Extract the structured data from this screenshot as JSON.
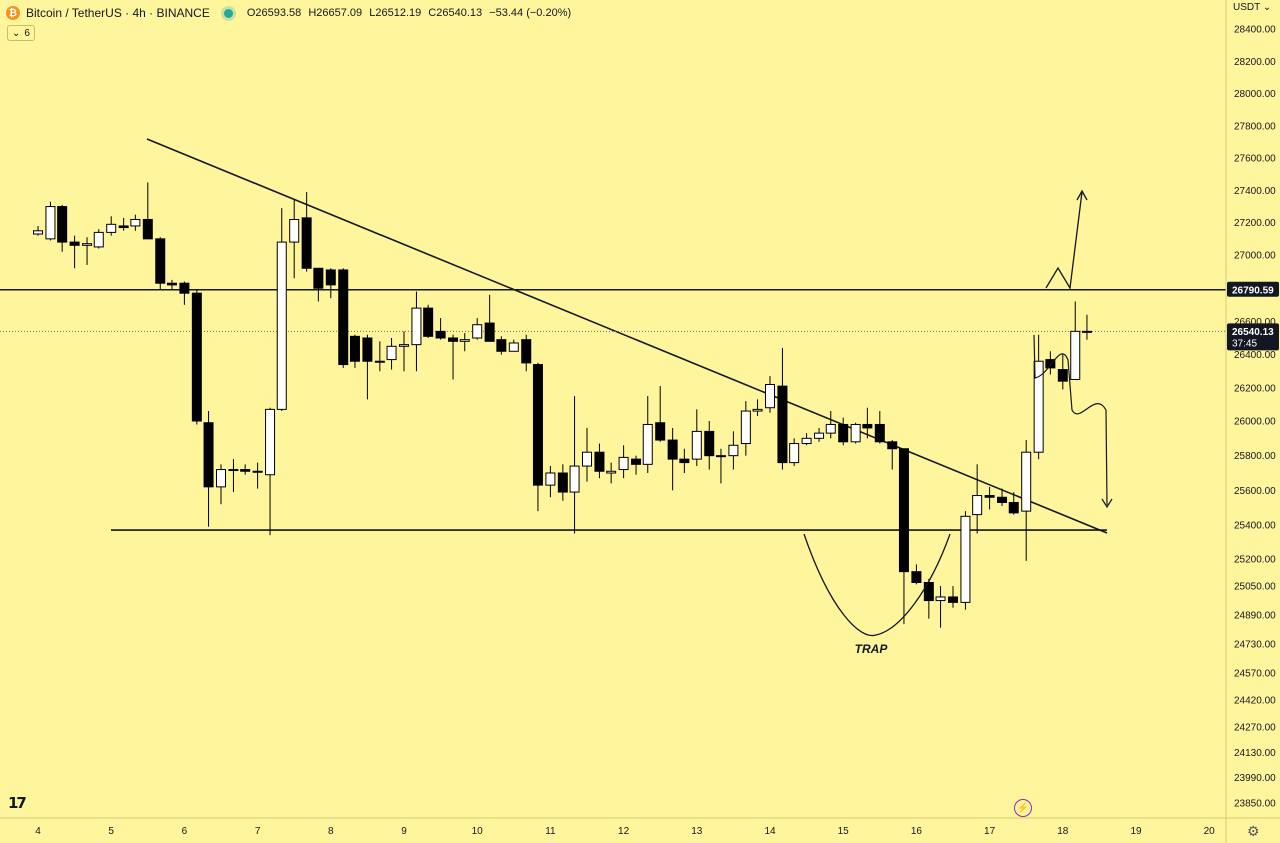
{
  "header": {
    "symbol": "Bitcoin / TetherUS · 4h · BINANCE",
    "open": "O26593.58",
    "high": "H26657.09",
    "low": "L26512.19",
    "close": "C26540.13",
    "change": "−53.44 (−0.20%)",
    "indicator_count": "6",
    "currency": "USDT"
  },
  "icons": {
    "coin": "bitcoin-coin-icon",
    "live": "market-open-dot-icon",
    "settings": "gear-icon",
    "alert": "lightning-icon",
    "logo": "tradingview-logo-icon"
  },
  "labels": {
    "trap": "TRAP",
    "logo_text": "17",
    "bolt": "⚡",
    "gear": "⚙"
  },
  "colors": {
    "background": "#fff59d",
    "bull_candle": "#ffffff",
    "bear_candle": "#000000",
    "price_tag": "#131722"
  },
  "chart_data": {
    "type": "candlestick",
    "title": "Bitcoin / TetherUS · 4h · BINANCE",
    "x_ticks": [
      "4",
      "5",
      "6",
      "7",
      "8",
      "9",
      "10",
      "11",
      "12",
      "13",
      "14",
      "15",
      "16",
      "17",
      "18",
      "19",
      "20"
    ],
    "y_ticks": [
      "28400.00",
      "28200.00",
      "28000.00",
      "27800.00",
      "27600.00",
      "27400.00",
      "27200.00",
      "27000.00",
      "26800.00",
      "26600.00",
      "26400.00",
      "26200.00",
      "26000.00",
      "25800.00",
      "25600.00",
      "25400.00",
      "25200.00",
      "25050.00",
      "24890.00",
      "24730.00",
      "24570.00",
      "24420.00",
      "24270.00",
      "24130.00",
      "23990.00",
      "23850.00"
    ],
    "candles": [
      {
        "t": "4.0",
        "o": 27130,
        "h": 27180,
        "l": 27120,
        "c": 27150
      },
      {
        "t": "4.17",
        "o": 27100,
        "h": 27330,
        "l": 27090,
        "c": 27300
      },
      {
        "t": "4.33",
        "o": 27300,
        "h": 27310,
        "l": 27020,
        "c": 27080
      },
      {
        "t": "4.5",
        "o": 27080,
        "h": 27120,
        "l": 26920,
        "c": 27060
      },
      {
        "t": "4.67",
        "o": 27060,
        "h": 27110,
        "l": 26940,
        "c": 27070
      },
      {
        "t": "4.83",
        "o": 27050,
        "h": 27160,
        "l": 27040,
        "c": 27140
      },
      {
        "t": "5.0",
        "o": 27140,
        "h": 27240,
        "l": 27120,
        "c": 27190
      },
      {
        "t": "5.17",
        "o": 27180,
        "h": 27230,
        "l": 27150,
        "c": 27170
      },
      {
        "t": "5.33",
        "o": 27180,
        "h": 27250,
        "l": 27150,
        "c": 27220
      },
      {
        "t": "5.5",
        "o": 27220,
        "h": 27450,
        "l": 27100,
        "c": 27100
      },
      {
        "t": "5.67",
        "o": 27100,
        "h": 27110,
        "l": 26790,
        "c": 26830
      },
      {
        "t": "5.83",
        "o": 26830,
        "h": 26850,
        "l": 26790,
        "c": 26820
      },
      {
        "t": "6.0",
        "o": 26830,
        "h": 26840,
        "l": 26700,
        "c": 26770
      },
      {
        "t": "6.17",
        "o": 26770,
        "h": 26790,
        "l": 25980,
        "c": 26000
      },
      {
        "t": "6.33",
        "o": 25990,
        "h": 26060,
        "l": 25390,
        "c": 25620
      },
      {
        "t": "6.5",
        "o": 25620,
        "h": 25750,
        "l": 25520,
        "c": 25720
      },
      {
        "t": "6.67",
        "o": 25720,
        "h": 25780,
        "l": 25590,
        "c": 25720
      },
      {
        "t": "6.83",
        "o": 25720,
        "h": 25750,
        "l": 25690,
        "c": 25710
      },
      {
        "t": "7.0",
        "o": 25710,
        "h": 25760,
        "l": 25610,
        "c": 25710
      },
      {
        "t": "7.17",
        "o": 25690,
        "h": 26080,
        "l": 25340,
        "c": 26070
      },
      {
        "t": "7.33",
        "o": 26070,
        "h": 27290,
        "l": 26060,
        "c": 27080
      },
      {
        "t": "7.5",
        "o": 27080,
        "h": 27340,
        "l": 26860,
        "c": 27220
      },
      {
        "t": "7.67",
        "o": 27230,
        "h": 27390,
        "l": 26900,
        "c": 26920
      },
      {
        "t": "7.83",
        "o": 26920,
        "h": 26920,
        "l": 26720,
        "c": 26800
      },
      {
        "t": "8.0",
        "o": 26910,
        "h": 26920,
        "l": 26740,
        "c": 26820
      },
      {
        "t": "8.17",
        "o": 26910,
        "h": 26920,
        "l": 26320,
        "c": 26340
      },
      {
        "t": "8.33",
        "o": 26510,
        "h": 26520,
        "l": 26320,
        "c": 26360
      },
      {
        "t": "8.5",
        "o": 26500,
        "h": 26520,
        "l": 26130,
        "c": 26360
      },
      {
        "t": "8.67",
        "o": 26360,
        "h": 26480,
        "l": 26300,
        "c": 26360
      },
      {
        "t": "8.83",
        "o": 26370,
        "h": 26500,
        "l": 26310,
        "c": 26450
      },
      {
        "t": "9.0",
        "o": 26450,
        "h": 26540,
        "l": 26300,
        "c": 26460
      },
      {
        "t": "9.17",
        "o": 26460,
        "h": 26780,
        "l": 26300,
        "c": 26680
      },
      {
        "t": "9.33",
        "o": 26680,
        "h": 26700,
        "l": 26500,
        "c": 26510
      },
      {
        "t": "9.5",
        "o": 26540,
        "h": 26620,
        "l": 26490,
        "c": 26500
      },
      {
        "t": "9.67",
        "o": 26500,
        "h": 26520,
        "l": 26250,
        "c": 26480
      },
      {
        "t": "9.83",
        "o": 26480,
        "h": 26530,
        "l": 26420,
        "c": 26490
      },
      {
        "t": "10.0",
        "o": 26500,
        "h": 26620,
        "l": 26490,
        "c": 26580
      },
      {
        "t": "10.17",
        "o": 26590,
        "h": 26760,
        "l": 26480,
        "c": 26480
      },
      {
        "t": "10.33",
        "o": 26490,
        "h": 26510,
        "l": 26400,
        "c": 26420
      },
      {
        "t": "10.5",
        "o": 26420,
        "h": 26490,
        "l": 26420,
        "c": 26470
      },
      {
        "t": "10.67",
        "o": 26490,
        "h": 26520,
        "l": 26300,
        "c": 26350
      },
      {
        "t": "10.83",
        "o": 26340,
        "h": 26350,
        "l": 25480,
        "c": 25630
      },
      {
        "t": "11.0",
        "o": 25630,
        "h": 25740,
        "l": 25560,
        "c": 25700
      },
      {
        "t": "11.17",
        "o": 25700,
        "h": 25750,
        "l": 25540,
        "c": 25590
      },
      {
        "t": "11.33",
        "o": 25590,
        "h": 26150,
        "l": 25350,
        "c": 25740
      },
      {
        "t": "11.5",
        "o": 25740,
        "h": 25960,
        "l": 25650,
        "c": 25820
      },
      {
        "t": "11.67",
        "o": 25820,
        "h": 25870,
        "l": 25670,
        "c": 25710
      },
      {
        "t": "11.83",
        "o": 25700,
        "h": 25760,
        "l": 25640,
        "c": 25710
      },
      {
        "t": "12.0",
        "o": 25720,
        "h": 25860,
        "l": 25670,
        "c": 25790
      },
      {
        "t": "12.17",
        "o": 25780,
        "h": 25800,
        "l": 25690,
        "c": 25750
      },
      {
        "t": "12.33",
        "o": 25750,
        "h": 26150,
        "l": 25700,
        "c": 25980
      },
      {
        "t": "12.5",
        "o": 25990,
        "h": 26210,
        "l": 25880,
        "c": 25890
      },
      {
        "t": "12.67",
        "o": 25890,
        "h": 25960,
        "l": 25600,
        "c": 25780
      },
      {
        "t": "12.83",
        "o": 25780,
        "h": 25840,
        "l": 25700,
        "c": 25760
      },
      {
        "t": "13.0",
        "o": 25780,
        "h": 26070,
        "l": 25740,
        "c": 25940
      },
      {
        "t": "13.17",
        "o": 25940,
        "h": 26000,
        "l": 25720,
        "c": 25800
      },
      {
        "t": "13.33",
        "o": 25800,
        "h": 25840,
        "l": 25640,
        "c": 25800
      },
      {
        "t": "13.5",
        "o": 25800,
        "h": 25940,
        "l": 25720,
        "c": 25860
      },
      {
        "t": "13.67",
        "o": 25870,
        "h": 26120,
        "l": 25800,
        "c": 26060
      },
      {
        "t": "13.83",
        "o": 26060,
        "h": 26130,
        "l": 26030,
        "c": 26070
      },
      {
        "t": "14.0",
        "o": 26080,
        "h": 26270,
        "l": 26050,
        "c": 26220
      },
      {
        "t": "14.17",
        "o": 26210,
        "h": 26440,
        "l": 25720,
        "c": 25760
      },
      {
        "t": "14.33",
        "o": 25760,
        "h": 25900,
        "l": 25740,
        "c": 25870
      },
      {
        "t": "14.5",
        "o": 25870,
        "h": 25930,
        "l": 25860,
        "c": 25900
      },
      {
        "t": "14.67",
        "o": 25900,
        "h": 25960,
        "l": 25880,
        "c": 25930
      },
      {
        "t": "14.83",
        "o": 25930,
        "h": 26060,
        "l": 25900,
        "c": 25980
      },
      {
        "t": "15.0",
        "o": 25980,
        "h": 26020,
        "l": 25860,
        "c": 25880
      },
      {
        "t": "15.17",
        "o": 25880,
        "h": 25990,
        "l": 25870,
        "c": 25980
      },
      {
        "t": "15.33",
        "o": 25980,
        "h": 26080,
        "l": 25900,
        "c": 25960
      },
      {
        "t": "15.5",
        "o": 25980,
        "h": 26060,
        "l": 25870,
        "c": 25880
      },
      {
        "t": "15.67",
        "o": 25880,
        "h": 25890,
        "l": 25720,
        "c": 25840
      },
      {
        "t": "15.83",
        "o": 25840,
        "h": 25840,
        "l": 24840,
        "c": 25130
      },
      {
        "t": "16.0",
        "o": 25130,
        "h": 25170,
        "l": 25060,
        "c": 25070
      },
      {
        "t": "16.17",
        "o": 25070,
        "h": 25090,
        "l": 24870,
        "c": 24970
      },
      {
        "t": "16.33",
        "o": 24970,
        "h": 25050,
        "l": 24820,
        "c": 24990
      },
      {
        "t": "16.5",
        "o": 24990,
        "h": 25050,
        "l": 24930,
        "c": 24960
      },
      {
        "t": "16.67",
        "o": 24960,
        "h": 25480,
        "l": 24920,
        "c": 25450
      },
      {
        "t": "16.83",
        "o": 25460,
        "h": 25750,
        "l": 25350,
        "c": 25570
      },
      {
        "t": "17.0",
        "o": 25570,
        "h": 25620,
        "l": 25490,
        "c": 25560
      },
      {
        "t": "17.17",
        "o": 25560,
        "h": 25610,
        "l": 25510,
        "c": 25530
      },
      {
        "t": "17.33",
        "o": 25530,
        "h": 25590,
        "l": 25460,
        "c": 25470
      },
      {
        "t": "17.5",
        "o": 25480,
        "h": 25890,
        "l": 25190,
        "c": 25820
      },
      {
        "t": "17.67",
        "o": 25820,
        "h": 26520,
        "l": 25780,
        "c": 26360
      },
      {
        "t": "17.83",
        "o": 26370,
        "h": 26420,
        "l": 26280,
        "c": 26320
      },
      {
        "t": "18.0",
        "o": 26310,
        "h": 26400,
        "l": 26190,
        "c": 26240
      },
      {
        "t": "18.17",
        "o": 26250,
        "h": 26720,
        "l": 26250,
        "c": 26540
      },
      {
        "t": "18.33",
        "o": 26540,
        "h": 26640,
        "l": 26490,
        "c": 26540
      }
    ],
    "horizontal_levels": [
      {
        "name": "resistance",
        "value": 26790.59,
        "label": "26790.59"
      },
      {
        "name": "support",
        "value": 25370
      }
    ],
    "current_price": {
      "label": "26540.13",
      "countdown": "37:45"
    },
    "annotations": [
      "TRAP"
    ],
    "grid": false,
    "legend": "none"
  }
}
